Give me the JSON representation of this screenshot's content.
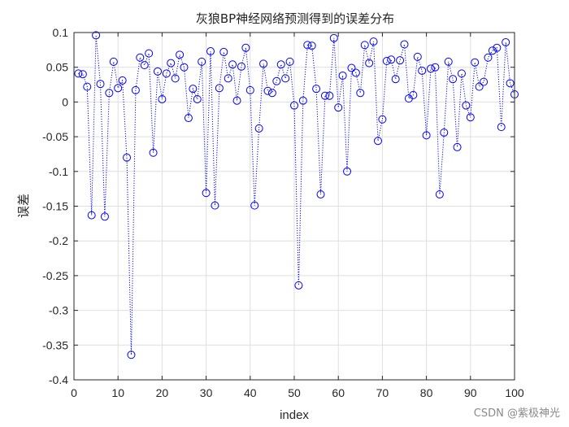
{
  "watermark": "CSDN @紫极神光",
  "colors": {
    "series": "#0000ff",
    "axis": "#262626",
    "grid": "#dfdfdf"
  },
  "chart_data": {
    "type": "scatter",
    "title": "灰狼BP神经网络预测得到的误差分布",
    "xlabel": "index",
    "ylabel": "误差",
    "xlim": [
      0,
      100
    ],
    "ylim": [
      -0.4,
      0.1
    ],
    "grid": true,
    "marker": "circle",
    "line_style": "dotted",
    "xticks": [
      "0",
      "10",
      "20",
      "30",
      "40",
      "50",
      "60",
      "70",
      "80",
      "90",
      "100"
    ],
    "yticks": [
      "0.1",
      "0.05",
      "0",
      "-0.05",
      "-0.1",
      "-0.15",
      "-0.2",
      "-0.25",
      "-0.3",
      "-0.35",
      "-0.4"
    ],
    "series": [
      {
        "x": [
          1,
          2,
          3,
          4,
          5,
          6,
          7,
          8,
          9,
          10,
          11,
          12,
          13,
          14,
          15,
          16,
          17,
          18,
          19,
          20,
          21,
          22,
          23,
          24,
          25,
          26,
          27,
          28,
          29,
          30,
          31,
          32,
          33,
          34,
          35,
          36,
          37,
          38,
          39,
          40,
          41,
          42,
          43,
          44,
          45,
          46,
          47,
          48,
          49,
          50,
          51,
          52,
          53,
          54,
          55,
          56,
          57,
          58,
          59,
          60,
          61,
          62,
          63,
          64,
          65,
          66,
          67,
          68,
          69,
          70,
          71,
          72,
          73,
          74,
          75,
          76,
          77,
          78,
          79,
          80,
          81,
          82,
          83,
          84,
          85,
          86,
          87,
          88,
          89,
          90,
          91,
          92,
          93,
          94,
          95,
          96,
          97,
          98,
          99,
          100
        ],
        "values": [
          0.041,
          0.04,
          0.022,
          -0.163,
          0.096,
          0.026,
          -0.165,
          0.013,
          0.058,
          0.02,
          0.031,
          -0.08,
          -0.364,
          0.017,
          0.064,
          0.053,
          0.07,
          -0.073,
          0.044,
          0.004,
          0.041,
          0.056,
          0.034,
          0.068,
          0.05,
          -0.023,
          0.019,
          0.004,
          0.058,
          -0.131,
          0.073,
          -0.149,
          0.02,
          0.072,
          0.034,
          0.054,
          0.002,
          0.051,
          0.078,
          0.017,
          -0.149,
          -0.038,
          0.055,
          0.016,
          0.013,
          0.03,
          0.054,
          0.034,
          0.058,
          -0.005,
          -0.264,
          0.002,
          0.082,
          0.081,
          0.019,
          -0.133,
          0.009,
          0.009,
          0.092,
          -0.008,
          0.038,
          -0.1,
          0.049,
          0.042,
          0.013,
          0.082,
          0.056,
          0.087,
          -0.056,
          -0.025,
          0.059,
          0.061,
          0.033,
          0.06,
          0.083,
          0.005,
          0.01,
          0.065,
          0.045,
          -0.048,
          0.048,
          0.05,
          -0.133,
          -0.044,
          0.058,
          0.033,
          -0.065,
          0.041,
          -0.005,
          -0.022,
          0.057,
          0.022,
          0.029,
          0.064,
          0.074,
          0.078,
          -0.036,
          0.086,
          0.027,
          0.011
        ]
      }
    ]
  }
}
